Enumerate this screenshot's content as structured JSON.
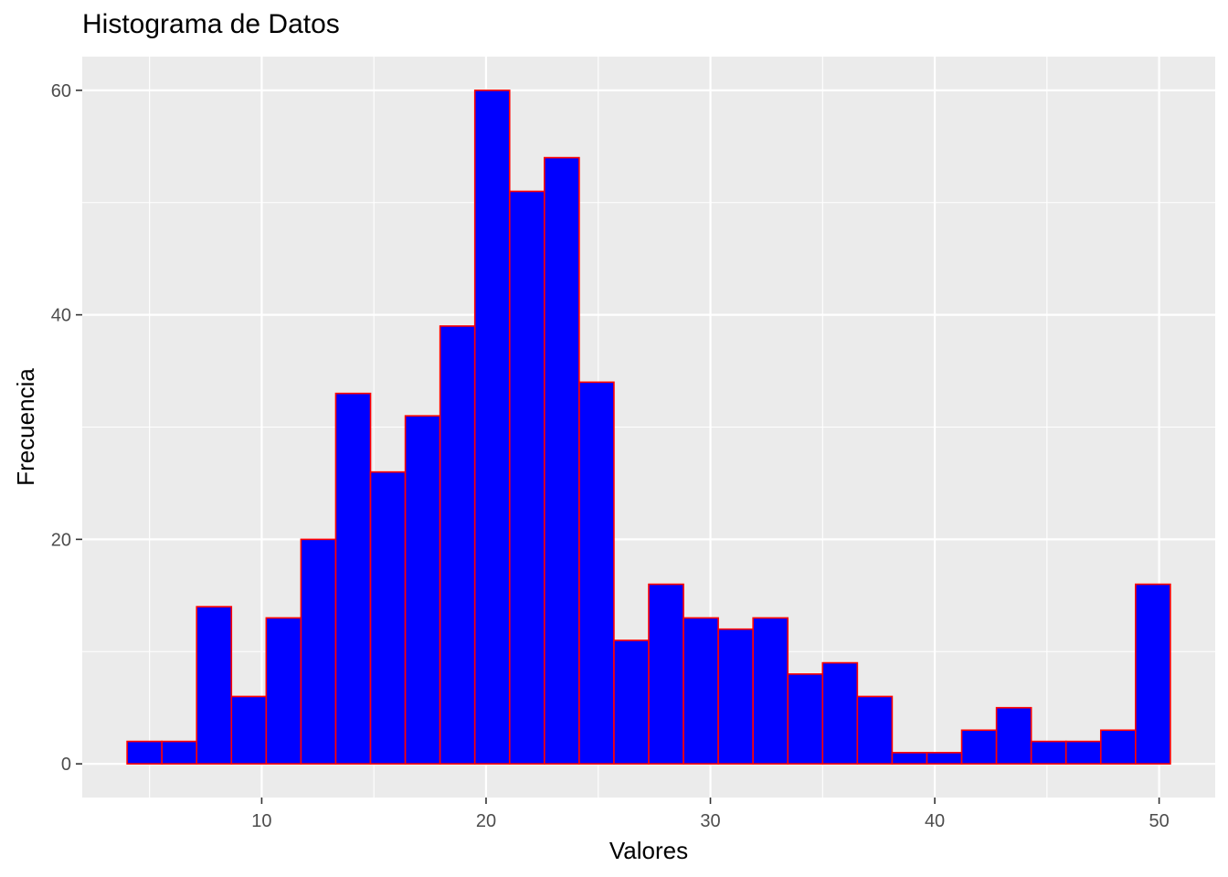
{
  "chart_data": {
    "type": "histogram",
    "title": "Histograma de Datos",
    "xlabel": "Valores",
    "ylabel": "Frecuencia",
    "bin_width": 1.55,
    "bin_start": 4.0,
    "bins": [
      {
        "start": 4.0,
        "end": 5.55,
        "count": 2
      },
      {
        "start": 5.55,
        "end": 7.1,
        "count": 2
      },
      {
        "start": 7.1,
        "end": 8.65,
        "count": 14
      },
      {
        "start": 8.65,
        "end": 10.2,
        "count": 6
      },
      {
        "start": 10.2,
        "end": 11.75,
        "count": 13
      },
      {
        "start": 11.75,
        "end": 13.3,
        "count": 20
      },
      {
        "start": 13.3,
        "end": 14.85,
        "count": 33
      },
      {
        "start": 14.85,
        "end": 16.4,
        "count": 26
      },
      {
        "start": 16.4,
        "end": 17.95,
        "count": 31
      },
      {
        "start": 17.95,
        "end": 19.5,
        "count": 39
      },
      {
        "start": 19.5,
        "end": 21.05,
        "count": 60
      },
      {
        "start": 21.05,
        "end": 22.6,
        "count": 51
      },
      {
        "start": 22.6,
        "end": 24.15,
        "count": 54
      },
      {
        "start": 24.15,
        "end": 25.7,
        "count": 34
      },
      {
        "start": 25.7,
        "end": 27.25,
        "count": 11
      },
      {
        "start": 27.25,
        "end": 28.8,
        "count": 16
      },
      {
        "start": 28.8,
        "end": 30.35,
        "count": 13
      },
      {
        "start": 30.35,
        "end": 31.9,
        "count": 12
      },
      {
        "start": 31.9,
        "end": 33.45,
        "count": 13
      },
      {
        "start": 33.45,
        "end": 35.0,
        "count": 8
      },
      {
        "start": 35.0,
        "end": 36.55,
        "count": 9
      },
      {
        "start": 36.55,
        "end": 38.1,
        "count": 6
      },
      {
        "start": 38.1,
        "end": 39.65,
        "count": 1
      },
      {
        "start": 39.65,
        "end": 41.2,
        "count": 1
      },
      {
        "start": 41.2,
        "end": 42.75,
        "count": 3
      },
      {
        "start": 42.75,
        "end": 44.3,
        "count": 5
      },
      {
        "start": 44.3,
        "end": 45.85,
        "count": 2
      },
      {
        "start": 45.85,
        "end": 47.4,
        "count": 2
      },
      {
        "start": 47.4,
        "end": 48.95,
        "count": 3
      },
      {
        "start": 48.95,
        "end": 50.5,
        "count": 16
      }
    ],
    "xlim": [
      2.0,
      52.5
    ],
    "ylim": [
      -3,
      63
    ],
    "x_ticks": [
      10,
      20,
      30,
      40,
      50
    ],
    "x_tick_labels": [
      "10",
      "20",
      "30",
      "40",
      "50"
    ],
    "y_ticks": [
      0,
      20,
      40,
      60
    ],
    "y_tick_labels": [
      "0",
      "20",
      "40",
      "60"
    ],
    "grid": true,
    "colors": {
      "panel_background": "#ebebeb",
      "grid_major": "#ffffff",
      "bar_fill": "#0000ff",
      "bar_outline": "#ff0000",
      "tick_text": "#4d4d4d",
      "axis_title": "#000000"
    }
  }
}
